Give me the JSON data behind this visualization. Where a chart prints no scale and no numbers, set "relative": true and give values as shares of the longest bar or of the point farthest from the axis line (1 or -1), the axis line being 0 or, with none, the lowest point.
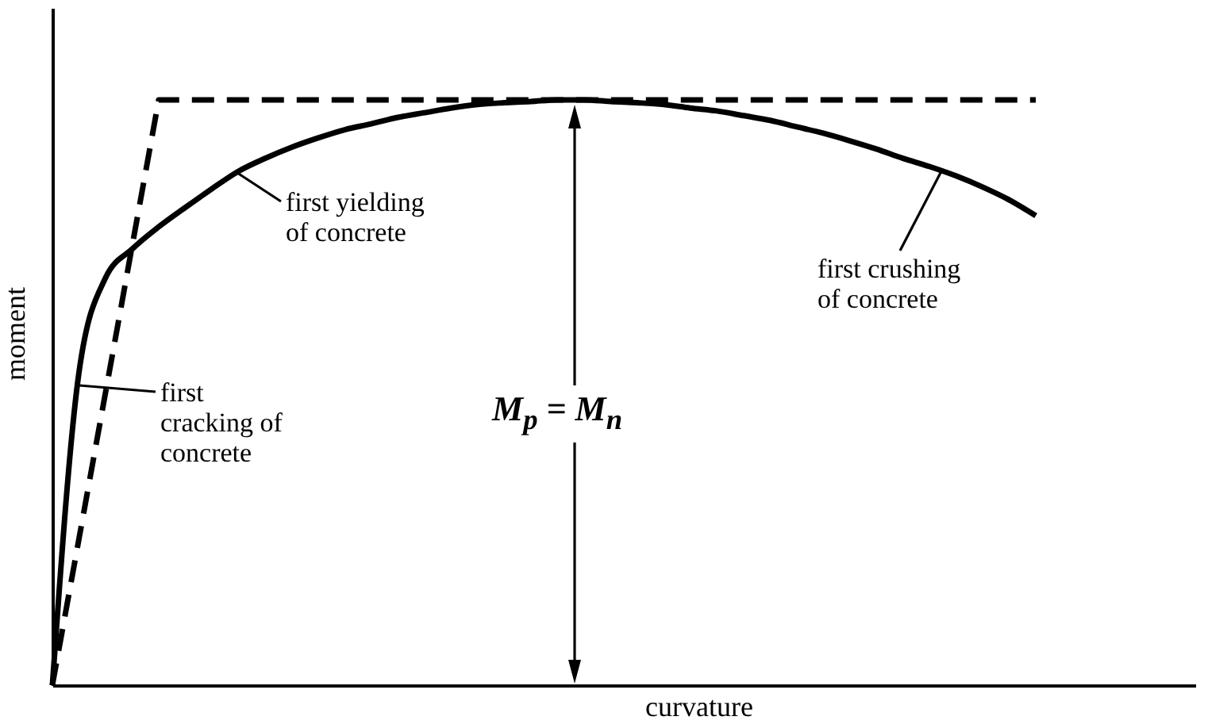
{
  "chart_data": {
    "type": "line",
    "relative": true,
    "xlabel": "curvature",
    "ylabel": "moment",
    "categories": [
      null,
      null,
      null,
      null,
      null,
      null,
      null,
      null,
      null,
      null,
      null,
      null,
      null,
      null,
      null,
      null,
      null,
      null,
      null,
      null,
      null,
      null,
      null,
      null,
      null,
      null,
      null,
      null,
      null,
      null,
      null,
      null,
      null,
      null,
      null,
      null,
      null,
      null,
      null,
      null,
      null,
      null,
      null,
      null
    ],
    "series": [
      {
        "color": "#000000",
        "line_style": "solid",
        "values": [
          0,
          0.534,
          0.696,
          0.745,
          0.783,
          0.816,
          0.848,
          0.878,
          0.9,
          0.919,
          0.935,
          0.949,
          0.959,
          0.97,
          0.978,
          0.986,
          0.992,
          0.995,
          0.997,
          1,
          1,
          0.997,
          0.995,
          0.992,
          0.986,
          0.981,
          0.973,
          0.965,
          0.954,
          0.943,
          0.93,
          0.916,
          0.9,
          0.886,
          0.87,
          0.851,
          0.829,
          0.802,
          null,
          null,
          null,
          null,
          null,
          null
        ]
      },
      {
        "color": "#000000",
        "line_style": "dashed",
        "values": [
          0,
          0.25,
          0.5,
          0.75,
          1,
          1,
          1,
          1,
          1,
          1,
          1,
          1,
          1,
          1,
          1,
          1,
          1,
          1,
          1,
          1,
          1,
          1,
          1,
          1,
          1,
          1,
          1,
          1,
          1,
          1,
          1,
          1,
          1,
          1,
          1,
          1,
          1,
          1,
          null,
          null,
          null,
          null,
          null,
          null
        ]
      }
    ],
    "annotations": [
      "first yielding\nof concrete",
      "first crushing\nof concrete",
      "first\ncracking of\nconcrete",
      "M$_{p}$ = M$_{n}$"
    ]
  }
}
